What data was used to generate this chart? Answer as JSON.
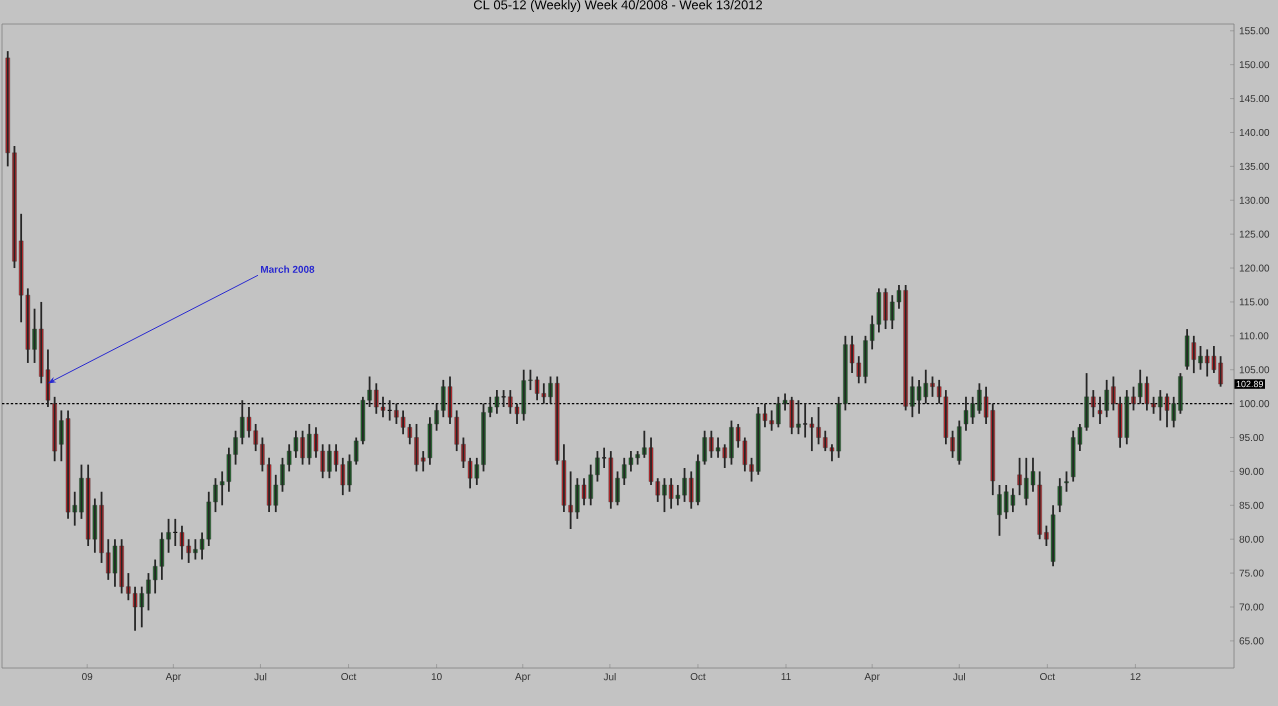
{
  "chart_data": {
    "type": "candlestick",
    "title": "CL 05-12 (Weekly)  Week 40/2008 - Week 13/2012",
    "x": [
      "2008-10-10",
      "2008-10-17",
      "2008-10-24",
      "2008-10-31",
      "2008-11-07",
      "2008-11-14",
      "2008-11-21",
      "2008-11-28",
      "2008-12-05",
      "2008-12-12",
      "2008-12-19",
      "2008-12-26",
      "2009-01-02",
      "2009-01-09",
      "2009-01-16",
      "2009-01-23",
      "2009-01-30",
      "2009-02-06",
      "2009-02-13",
      "2009-02-20",
      "2009-02-27",
      "2009-03-06",
      "2009-03-13",
      "2009-03-20",
      "2009-03-27",
      "2009-04-03",
      "2009-04-10",
      "2009-04-17",
      "2009-04-24",
      "2009-05-01",
      "2009-05-08",
      "2009-05-15",
      "2009-05-22",
      "2009-05-29",
      "2009-06-05",
      "2009-06-12",
      "2009-06-19",
      "2009-06-26",
      "2009-07-03",
      "2009-07-10",
      "2009-07-17",
      "2009-07-24",
      "2009-07-31",
      "2009-08-07",
      "2009-08-14",
      "2009-08-21",
      "2009-08-28",
      "2009-09-04",
      "2009-09-11",
      "2009-09-18",
      "2009-09-25",
      "2009-10-02",
      "2009-10-09",
      "2009-10-16",
      "2009-10-23",
      "2009-10-30",
      "2009-11-06",
      "2009-11-13",
      "2009-11-20",
      "2009-11-27",
      "2009-12-04",
      "2009-12-11",
      "2009-12-18",
      "2009-12-25",
      "2010-01-01",
      "2010-01-08",
      "2010-01-15",
      "2010-01-22",
      "2010-01-29",
      "2010-02-05",
      "2010-02-12",
      "2010-02-19",
      "2010-02-26",
      "2010-03-05",
      "2010-03-12",
      "2010-03-19",
      "2010-03-26",
      "2010-04-02",
      "2010-04-09",
      "2010-04-16",
      "2010-04-23",
      "2010-04-30",
      "2010-05-07",
      "2010-05-14",
      "2010-05-21",
      "2010-05-28",
      "2010-06-04",
      "2010-06-11",
      "2010-06-18",
      "2010-06-25",
      "2010-07-02",
      "2010-07-09",
      "2010-07-16",
      "2010-07-23",
      "2010-07-30",
      "2010-08-06",
      "2010-08-13",
      "2010-08-20",
      "2010-08-27",
      "2010-09-03",
      "2010-09-10",
      "2010-09-17",
      "2010-09-24",
      "2010-10-01",
      "2010-10-08",
      "2010-10-15",
      "2010-10-22",
      "2010-10-29",
      "2010-11-05",
      "2010-11-12",
      "2010-11-19",
      "2010-11-26",
      "2010-12-03",
      "2010-12-10",
      "2010-12-17",
      "2010-12-24",
      "2010-12-31",
      "2011-01-07",
      "2011-01-14",
      "2011-01-21",
      "2011-01-28",
      "2011-02-04",
      "2011-02-11",
      "2011-02-18",
      "2011-02-25",
      "2011-03-04",
      "2011-03-11",
      "2011-03-18",
      "2011-03-25",
      "2011-04-01",
      "2011-04-08",
      "2011-04-15",
      "2011-04-22",
      "2011-04-29",
      "2011-05-06",
      "2011-05-13",
      "2011-05-20",
      "2011-05-27",
      "2011-06-03",
      "2011-06-10",
      "2011-06-17",
      "2011-06-24",
      "2011-07-01",
      "2011-07-08",
      "2011-07-15",
      "2011-07-22",
      "2011-07-29",
      "2011-08-05",
      "2011-08-12",
      "2011-08-19",
      "2011-08-26",
      "2011-09-02",
      "2011-09-09",
      "2011-09-16",
      "2011-09-23",
      "2011-09-30",
      "2011-10-07",
      "2011-10-14",
      "2011-10-21",
      "2011-10-28",
      "2011-11-04",
      "2011-11-11",
      "2011-11-18",
      "2011-11-25",
      "2011-12-02",
      "2011-12-09",
      "2011-12-16",
      "2011-12-23",
      "2011-12-30",
      "2012-01-06",
      "2012-01-13",
      "2012-01-20",
      "2012-01-27",
      "2012-02-03",
      "2012-02-10",
      "2012-02-17",
      "2012-02-24",
      "2012-03-02",
      "2012-03-09",
      "2012-03-16",
      "2012-03-23",
      "2012-03-30"
    ],
    "ohlc": [
      [
        151,
        152,
        135,
        137
      ],
      [
        137,
        138,
        120,
        121
      ],
      [
        124,
        128,
        112,
        116
      ],
      [
        116,
        117,
        106,
        108
      ],
      [
        108,
        114,
        106,
        111
      ],
      [
        111,
        115,
        103,
        104
      ],
      [
        105,
        108,
        99.5,
        100.5
      ],
      [
        100,
        101,
        91.5,
        93
      ],
      [
        94,
        99,
        91.5,
        97.5
      ],
      [
        97.8,
        99,
        83,
        84
      ],
      [
        84,
        87,
        82,
        85
      ],
      [
        84,
        91,
        83,
        89
      ],
      [
        89,
        91,
        79,
        80
      ],
      [
        80,
        86,
        78,
        85
      ],
      [
        85,
        87,
        76.5,
        78
      ],
      [
        78,
        80,
        74,
        75
      ],
      [
        75,
        80,
        73,
        79
      ],
      [
        79,
        80,
        72,
        73
      ],
      [
        73,
        75,
        71,
        72
      ],
      [
        72,
        73,
        66.5,
        70
      ],
      [
        70,
        73,
        67,
        72
      ],
      [
        72,
        75,
        69.5,
        74
      ],
      [
        74,
        77,
        72,
        76
      ],
      [
        76,
        81,
        74,
        80
      ],
      [
        80,
        83,
        78,
        81
      ],
      [
        81,
        83,
        79,
        81
      ],
      [
        81,
        82,
        77,
        79
      ],
      [
        79,
        80,
        76.5,
        78
      ],
      [
        78,
        80,
        77,
        78.5
      ],
      [
        78.5,
        81,
        77,
        80
      ],
      [
        80,
        87,
        79,
        85.5
      ],
      [
        85.5,
        89,
        84,
        88
      ],
      [
        88,
        90,
        85,
        88.5
      ],
      [
        88.5,
        93.5,
        87,
        92.5
      ],
      [
        92.5,
        96,
        91,
        95
      ],
      [
        95,
        100.5,
        94,
        98
      ],
      [
        98,
        99.5,
        95,
        96
      ],
      [
        96,
        97,
        93,
        94
      ],
      [
        94,
        95,
        90,
        91
      ],
      [
        91,
        92,
        84,
        85
      ],
      [
        85,
        89.5,
        84,
        88
      ],
      [
        88,
        92,
        87,
        91
      ],
      [
        91,
        94,
        90,
        93
      ],
      [
        93,
        96,
        92,
        95
      ],
      [
        95,
        96,
        91,
        92
      ],
      [
        92,
        97,
        91,
        95.5
      ],
      [
        95.5,
        96.5,
        92,
        93
      ],
      [
        93,
        94,
        89,
        90
      ],
      [
        90,
        94,
        89,
        93
      ],
      [
        93,
        94,
        90,
        91
      ],
      [
        91,
        92,
        86.5,
        88
      ],
      [
        88,
        92.5,
        87,
        91.5
      ],
      [
        91.5,
        95,
        91,
        94.5
      ],
      [
        94.5,
        101,
        94,
        100.5
      ],
      [
        100.5,
        104,
        99.5,
        102
      ],
      [
        102,
        103,
        98.5,
        99.5
      ],
      [
        99.5,
        101,
        98,
        99
      ],
      [
        99,
        100.5,
        97.5,
        99
      ],
      [
        99,
        100,
        97,
        98
      ],
      [
        98,
        99,
        95.5,
        96.5
      ],
      [
        96.5,
        97,
        94,
        95
      ],
      [
        95,
        97,
        90,
        91
      ],
      [
        92,
        93,
        90,
        91.5
      ],
      [
        92,
        98,
        91,
        97
      ],
      [
        97,
        100,
        96,
        99
      ],
      [
        99,
        103.5,
        98,
        102.5
      ],
      [
        102.5,
        104,
        97,
        98
      ],
      [
        98,
        99,
        93,
        94
      ],
      [
        94,
        95,
        90.5,
        91.5
      ],
      [
        91.5,
        92,
        87.5,
        89
      ],
      [
        89,
        92,
        88,
        91
      ],
      [
        91,
        100,
        90,
        98.7
      ],
      [
        98.7,
        101,
        98,
        99.5
      ],
      [
        99.5,
        102,
        98.5,
        101
      ],
      [
        101,
        102,
        99.5,
        101
      ],
      [
        101,
        102,
        98.5,
        99.5
      ],
      [
        99.5,
        100,
        97,
        98.5
      ],
      [
        98.5,
        105,
        97.5,
        103.4
      ],
      [
        103.4,
        105,
        102,
        103.5
      ],
      [
        103.5,
        104,
        100.5,
        101.5
      ],
      [
        101.5,
        103,
        100,
        101
      ],
      [
        101,
        104,
        100,
        103
      ],
      [
        103,
        104,
        91,
        91.6
      ],
      [
        91.6,
        94,
        84,
        85
      ],
      [
        85,
        90,
        81.5,
        84
      ],
      [
        84,
        89,
        83,
        88
      ],
      [
        88,
        89,
        85,
        86
      ],
      [
        86,
        91,
        85,
        89.5
      ],
      [
        89.5,
        93,
        88.5,
        92
      ],
      [
        92,
        93.5,
        90.5,
        92
      ],
      [
        92,
        93,
        84.5,
        85.5
      ],
      [
        85.5,
        90,
        85,
        89
      ],
      [
        89,
        92,
        88,
        91
      ],
      [
        91,
        93,
        90,
        92
      ],
      [
        92,
        93,
        91,
        92.5
      ],
      [
        92.5,
        96,
        92,
        93.5
      ],
      [
        93.5,
        95,
        88,
        88.5
      ],
      [
        88.5,
        89,
        85.5,
        86.5
      ],
      [
        86.5,
        89,
        84,
        88
      ],
      [
        88,
        89,
        84.5,
        86
      ],
      [
        86,
        88,
        85,
        86.5
      ],
      [
        86.5,
        90.5,
        85.5,
        89
      ],
      [
        89,
        90,
        84.5,
        85.5
      ],
      [
        85.5,
        92.5,
        85,
        91.5
      ],
      [
        91.5,
        96,
        91,
        95
      ],
      [
        95,
        96,
        92,
        93
      ],
      [
        93,
        95,
        92,
        93.5
      ],
      [
        93.5,
        94,
        90.5,
        92
      ],
      [
        92,
        97.5,
        91,
        96.5
      ],
      [
        96.5,
        97,
        93.5,
        94.5
      ],
      [
        94.5,
        95,
        90,
        91
      ],
      [
        91,
        92,
        88.5,
        90
      ],
      [
        90,
        99.5,
        89.5,
        98.5
      ],
      [
        98.5,
        100,
        96.5,
        97.5
      ],
      [
        97.5,
        99,
        96,
        97
      ],
      [
        97,
        101,
        96.5,
        100
      ],
      [
        100,
        101.5,
        99,
        100.5
      ],
      [
        100.5,
        101,
        95.5,
        96.5
      ],
      [
        96.5,
        100.5,
        95.5,
        97
      ],
      [
        97,
        100,
        95,
        97
      ],
      [
        97,
        98,
        93,
        96.5
      ],
      [
        96.5,
        99.5,
        94,
        95
      ],
      [
        95,
        96,
        93,
        93.5
      ],
      [
        93.5,
        94,
        91.5,
        93
      ],
      [
        93,
        101,
        92,
        100
      ],
      [
        100,
        110,
        99,
        108.7
      ],
      [
        108.7,
        110,
        104.5,
        106
      ],
      [
        106,
        107,
        103,
        104
      ],
      [
        104,
        110,
        103,
        109.3
      ],
      [
        109.3,
        113,
        108,
        111.7
      ],
      [
        111.7,
        117,
        110.5,
        116.4
      ],
      [
        116.4,
        117,
        111,
        112.3
      ],
      [
        112.3,
        116,
        111,
        115
      ],
      [
        115,
        117.5,
        114,
        116.7
      ],
      [
        116.7,
        117.5,
        99,
        99.6
      ],
      [
        99.6,
        104,
        98,
        102.5
      ],
      [
        100.5,
        103.5,
        98.5,
        102.5
      ],
      [
        101,
        105,
        100,
        103
      ],
      [
        103,
        104,
        101,
        102.5
      ],
      [
        102.5,
        103.5,
        100,
        101
      ],
      [
        101,
        102,
        94,
        95
      ],
      [
        95,
        96,
        92,
        93
      ],
      [
        91.6,
        97.5,
        91,
        96.6
      ],
      [
        97,
        101,
        96,
        99
      ],
      [
        98,
        101,
        97,
        100
      ],
      [
        99,
        103,
        98.5,
        102
      ],
      [
        101,
        102.5,
        97,
        98
      ],
      [
        99,
        100,
        86.5,
        88.6
      ],
      [
        83.6,
        88,
        80.5,
        86.6
      ],
      [
        84,
        88,
        83,
        87
      ],
      [
        85,
        87.5,
        84,
        86.5
      ],
      [
        89.5,
        92,
        86.5,
        88
      ],
      [
        86,
        92,
        85,
        89
      ],
      [
        88,
        92,
        87,
        90
      ],
      [
        88,
        90,
        80,
        80.7
      ],
      [
        81,
        82,
        79,
        80
      ],
      [
        76.7,
        85,
        76,
        83.6
      ],
      [
        85,
        89,
        84,
        87.8
      ],
      [
        88.3,
        90,
        87,
        88.5
      ],
      [
        89.2,
        96,
        88.5,
        95
      ],
      [
        94,
        97,
        93,
        96.5
      ],
      [
        96.5,
        104.5,
        96,
        101
      ],
      [
        101,
        102,
        98,
        99.5
      ],
      [
        99,
        101,
        97,
        98.5
      ],
      [
        99,
        103.5,
        98,
        102
      ],
      [
        102.5,
        104,
        99,
        100
      ],
      [
        100,
        101,
        93.5,
        95
      ],
      [
        95,
        102,
        94,
        101
      ],
      [
        101,
        102.5,
        99,
        100
      ],
      [
        101,
        105,
        100,
        103
      ],
      [
        103,
        104,
        99,
        100
      ],
      [
        100,
        101,
        98.5,
        99.5
      ],
      [
        99.5,
        102,
        97.5,
        101
      ],
      [
        101,
        101.5,
        96.5,
        99
      ],
      [
        97.5,
        101,
        96.5,
        100
      ],
      [
        99,
        104.5,
        98.5,
        104
      ],
      [
        105.5,
        111,
        105,
        110
      ],
      [
        109,
        110,
        104.5,
        106.5
      ],
      [
        106,
        108.5,
        105,
        107
      ],
      [
        107,
        108,
        104,
        106
      ],
      [
        107,
        108.5,
        104.5,
        105
      ],
      [
        106,
        107,
        102.5,
        102.89
      ]
    ],
    "xlim": [
      "2008-10-04",
      "2012-04-13"
    ],
    "xticks": [
      {
        "value": "2009-01-01",
        "label": "09"
      },
      {
        "value": "2009-04-01",
        "label": "Apr"
      },
      {
        "value": "2009-07-01",
        "label": "Jul"
      },
      {
        "value": "2009-10-01",
        "label": "Oct"
      },
      {
        "value": "2010-01-01",
        "label": "10"
      },
      {
        "value": "2010-04-01",
        "label": "Apr"
      },
      {
        "value": "2010-07-01",
        "label": "Jul"
      },
      {
        "value": "2010-10-01",
        "label": "Oct"
      },
      {
        "value": "2011-01-01",
        "label": "11"
      },
      {
        "value": "2011-04-01",
        "label": "Apr"
      },
      {
        "value": "2011-07-01",
        "label": "Jul"
      },
      {
        "value": "2011-10-01",
        "label": "Oct"
      },
      {
        "value": "2012-01-01",
        "label": "12"
      }
    ],
    "ylim": [
      61,
      156
    ],
    "yticks": [
      {
        "value": 65,
        "label": "65.00"
      },
      {
        "value": 70,
        "label": "70.00"
      },
      {
        "value": 75,
        "label": "75.00"
      },
      {
        "value": 80,
        "label": "80.00"
      },
      {
        "value": 85,
        "label": "85.00"
      },
      {
        "value": 90,
        "label": "90.00"
      },
      {
        "value": 95,
        "label": "95.00"
      },
      {
        "value": 100,
        "label": "100.00"
      },
      {
        "value": 105,
        "label": "105.00"
      },
      {
        "value": 110,
        "label": "110.00"
      },
      {
        "value": 115,
        "label": "115.00"
      },
      {
        "value": 120,
        "label": "120.00"
      },
      {
        "value": 125,
        "label": "125.00"
      },
      {
        "value": 130,
        "label": "130.00"
      },
      {
        "value": 135,
        "label": "135.00"
      },
      {
        "value": 140,
        "label": "140.00"
      },
      {
        "value": 145,
        "label": "145.00"
      },
      {
        "value": 150,
        "label": "150.00"
      },
      {
        "value": 155,
        "label": "155.00"
      }
    ],
    "ref_lines": [
      {
        "axis": "y",
        "value": 100,
        "color": "#000000",
        "line_style": "dashed"
      }
    ],
    "annotations": [
      {
        "text": "March 2008",
        "x": "2008-11-21",
        "y": 103
      },
      {
        "text": "102.89",
        "y": 102.89
      }
    ]
  }
}
